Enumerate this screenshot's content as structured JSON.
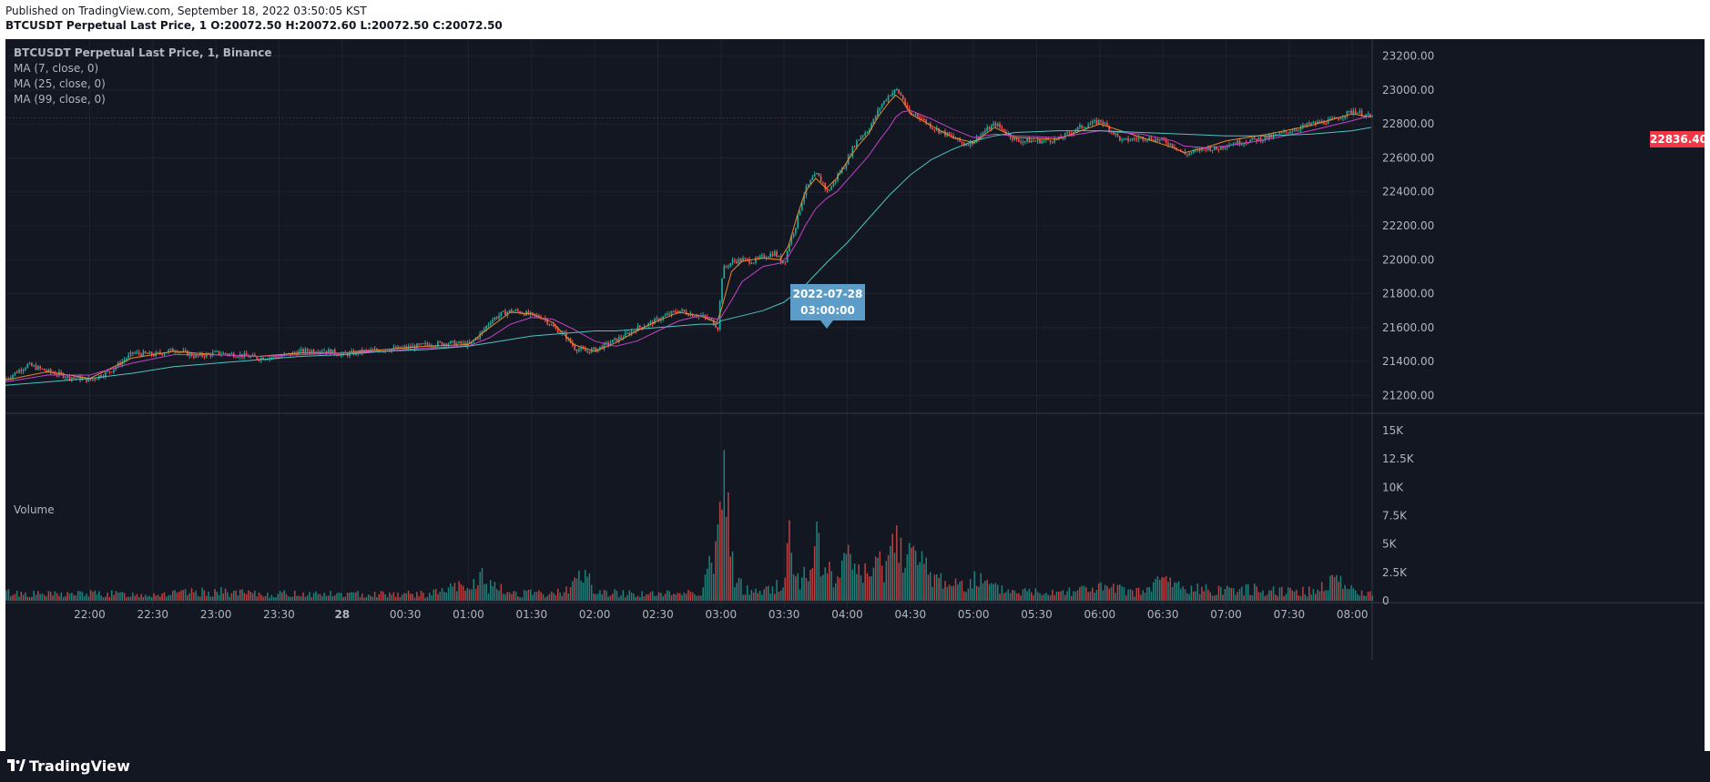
{
  "header": {
    "published": "Published on TradingView.com, September 18, 2022 03:50:05 KST",
    "symbol_line": "BTCUSDT Perpetual Last Price, 1",
    "open_label": "O:",
    "open": "20072.50",
    "high_label": "H:",
    "high": "20072.60",
    "low_label": "L:",
    "low": "20072.50",
    "close_label": "C:",
    "close": "20072.50"
  },
  "legend": {
    "title": "BTCUSDT Perpetual Last Price, 1, Binance",
    "ma1": "MA (7, close, 0)",
    "ma2": "MA (25, close, 0)",
    "ma3": "MA (99, close, 0)",
    "volume": "Volume"
  },
  "tooltip": {
    "date": "2022-07-28",
    "time": "03:00:00"
  },
  "last_price": "22836.40",
  "brand": "TradingView",
  "colors": {
    "background": "#131722",
    "grid": "#1f232e",
    "axis_text": "#b2b5be",
    "up": "#26a69a",
    "down": "#ef5350",
    "ma7": "#e88a2e",
    "ma25": "#c542c8",
    "ma99": "#4fc3c0",
    "tooltip": "#5b9cc9",
    "price_tag": "#f23645"
  },
  "chart_data": {
    "type": "line",
    "title": "BTCUSDT Perpetual Last Price, 1, Binance",
    "x_ticks": [
      "22:00",
      "22:30",
      "23:00",
      "23:30",
      "28",
      "00:30",
      "01:00",
      "01:30",
      "02:00",
      "02:30",
      "03:00",
      "03:30",
      "04:00",
      "04:30",
      "05:00",
      "05:30",
      "06:00",
      "06:30",
      "07:00",
      "07:30",
      "08:00"
    ],
    "y_ticks": [
      "23200.00",
      "23000.00",
      "22800.00",
      "22600.00",
      "22400.00",
      "22200.00",
      "22000.00",
      "21800.00",
      "21600.00",
      "21400.00",
      "21200.00"
    ],
    "ylim": [
      21100,
      23300
    ],
    "volume_ticks": [
      "15K",
      "12.5K",
      "10K",
      "7.5K",
      "5K",
      "2.5K",
      "0"
    ],
    "volume_ylim": [
      0,
      15800
    ],
    "x_range_minutes": [
      1280,
      1929
    ],
    "x_tick_minutes": [
      1320,
      1350,
      1380,
      1410,
      1440,
      1470,
      1500,
      1530,
      1560,
      1590,
      1620,
      1650,
      1680,
      1710,
      1740,
      1770,
      1800,
      1830,
      1860,
      1890,
      1920
    ],
    "price_series": {
      "minutes": [
        1280,
        1290,
        1300,
        1310,
        1320,
        1330,
        1340,
        1350,
        1360,
        1370,
        1380,
        1390,
        1400,
        1410,
        1420,
        1430,
        1440,
        1450,
        1460,
        1470,
        1480,
        1490,
        1500,
        1505,
        1510,
        1515,
        1520,
        1525,
        1530,
        1535,
        1540,
        1545,
        1550,
        1555,
        1560,
        1565,
        1570,
        1575,
        1580,
        1585,
        1590,
        1595,
        1600,
        1605,
        1610,
        1615,
        1618,
        1619,
        1620,
        1621,
        1622,
        1625,
        1630,
        1635,
        1640,
        1645,
        1647,
        1648,
        1650,
        1652,
        1655,
        1658,
        1660,
        1663,
        1665,
        1668,
        1670,
        1673,
        1675,
        1678,
        1680,
        1683,
        1686,
        1689,
        1692,
        1695,
        1698,
        1700,
        1703,
        1706,
        1708,
        1710,
        1712,
        1715,
        1718,
        1720,
        1725,
        1730,
        1735,
        1740,
        1745,
        1750,
        1755,
        1760,
        1770,
        1780,
        1790,
        1800,
        1810,
        1820,
        1830,
        1835,
        1840,
        1845,
        1850,
        1855,
        1860,
        1870,
        1880,
        1890,
        1895,
        1900,
        1910,
        1920,
        1929
      ],
      "close": [
        21300,
        21380,
        21340,
        21310,
        21290,
        21350,
        21450,
        21440,
        21470,
        21430,
        21450,
        21440,
        21420,
        21430,
        21460,
        21470,
        21440,
        21460,
        21470,
        21480,
        21500,
        21510,
        21500,
        21560,
        21640,
        21680,
        21700,
        21690,
        21670,
        21660,
        21600,
        21560,
        21480,
        21460,
        21470,
        21500,
        21530,
        21560,
        21600,
        21620,
        21650,
        21680,
        21700,
        21680,
        21670,
        21640,
        21600,
        21750,
        21900,
        21950,
        21960,
        21990,
        22000,
        21990,
        22020,
        22040,
        22010,
        21990,
        22000,
        22100,
        22200,
        22350,
        22420,
        22480,
        22500,
        22450,
        22400,
        22450,
        22500,
        22550,
        22600,
        22680,
        22730,
        22760,
        22820,
        22900,
        22950,
        22980,
        23000,
        22950,
        22880,
        22850,
        22860,
        22830,
        22800,
        22780,
        22750,
        22720,
        22680,
        22700,
        22760,
        22800,
        22750,
        22700,
        22700,
        22710,
        22780,
        22820,
        22700,
        22720,
        22700,
        22670,
        22620,
        22640,
        22660,
        22650,
        22680,
        22700,
        22720,
        22760,
        22780,
        22800,
        22820,
        22880,
        22836
      ]
    },
    "ma_series": [
      {
        "name": "MA (7, close, 0)",
        "minutes": [
          1280,
          1300,
          1320,
          1340,
          1360,
          1380,
          1400,
          1420,
          1440,
          1460,
          1480,
          1500,
          1510,
          1520,
          1530,
          1540,
          1550,
          1560,
          1570,
          1580,
          1590,
          1600,
          1610,
          1618,
          1620,
          1625,
          1630,
          1640,
          1648,
          1652,
          1656,
          1660,
          1665,
          1670,
          1675,
          1680,
          1685,
          1690,
          1695,
          1700,
          1703,
          1706,
          1710,
          1720,
          1730,
          1740,
          1750,
          1760,
          1780,
          1800,
          1820,
          1835,
          1840,
          1850,
          1860,
          1880,
          1900,
          1920,
          1929
        ],
        "values": [
          21290,
          21340,
          21300,
          21420,
          21460,
          21440,
          21430,
          21450,
          21450,
          21470,
          21490,
          21500,
          21600,
          21690,
          21680,
          21630,
          21500,
          21460,
          21510,
          21580,
          21640,
          21690,
          21670,
          21630,
          21700,
          21930,
          21990,
          22010,
          22000,
          22080,
          22250,
          22400,
          22480,
          22420,
          22480,
          22580,
          22670,
          22740,
          22850,
          22930,
          22970,
          22940,
          22860,
          22790,
          22720,
          22690,
          22780,
          22720,
          22710,
          22800,
          22720,
          22660,
          22630,
          22660,
          22700,
          22740,
          22790,
          22860,
          22840
        ]
      },
      {
        "name": "MA (25, close, 0)",
        "minutes": [
          1280,
          1300,
          1320,
          1340,
          1360,
          1380,
          1400,
          1420,
          1440,
          1460,
          1480,
          1500,
          1510,
          1520,
          1530,
          1540,
          1550,
          1560,
          1570,
          1580,
          1590,
          1600,
          1610,
          1618,
          1620,
          1625,
          1630,
          1640,
          1648,
          1652,
          1656,
          1660,
          1665,
          1670,
          1675,
          1680,
          1685,
          1690,
          1695,
          1700,
          1703,
          1706,
          1710,
          1720,
          1730,
          1740,
          1750,
          1760,
          1780,
          1800,
          1820,
          1835,
          1840,
          1850,
          1860,
          1880,
          1900,
          1920,
          1929
        ],
        "values": [
          21280,
          21320,
          21320,
          21390,
          21440,
          21440,
          21430,
          21440,
          21450,
          21460,
          21480,
          21490,
          21540,
          21620,
          21660,
          21650,
          21590,
          21520,
          21490,
          21520,
          21580,
          21640,
          21670,
          21650,
          21660,
          21760,
          21870,
          21960,
          21980,
          22020,
          22100,
          22200,
          22300,
          22360,
          22400,
          22470,
          22540,
          22610,
          22700,
          22780,
          22840,
          22870,
          22880,
          22830,
          22770,
          22720,
          22740,
          22730,
          22720,
          22760,
          22740,
          22700,
          22670,
          22660,
          22670,
          22710,
          22760,
          22820,
          22850
        ]
      },
      {
        "name": "MA (99, close, 0)",
        "minutes": [
          1280,
          1300,
          1320,
          1340,
          1360,
          1380,
          1400,
          1420,
          1440,
          1460,
          1480,
          1500,
          1510,
          1520,
          1530,
          1540,
          1550,
          1560,
          1570,
          1580,
          1590,
          1600,
          1610,
          1618,
          1620,
          1630,
          1640,
          1650,
          1660,
          1670,
          1680,
          1690,
          1700,
          1710,
          1720,
          1730,
          1740,
          1750,
          1760,
          1780,
          1800,
          1820,
          1840,
          1860,
          1880,
          1900,
          1920,
          1929
        ],
        "values": [
          21260,
          21280,
          21300,
          21330,
          21370,
          21390,
          21410,
          21430,
          21440,
          21460,
          21470,
          21490,
          21510,
          21530,
          21550,
          21560,
          21570,
          21580,
          21580,
          21590,
          21600,
          21610,
          21620,
          21620,
          21640,
          21670,
          21700,
          21750,
          21850,
          21980,
          22100,
          22240,
          22380,
          22500,
          22590,
          22650,
          22700,
          22730,
          22750,
          22760,
          22760,
          22750,
          22740,
          22730,
          22730,
          22740,
          22760,
          22780
        ]
      }
    ],
    "volume_series": {
      "minutes": [
        1280,
        1300,
        1320,
        1340,
        1360,
        1380,
        1400,
        1420,
        1440,
        1460,
        1480,
        1495,
        1500,
        1505,
        1510,
        1520,
        1540,
        1556,
        1560,
        1580,
        1590,
        1600,
        1610,
        1619,
        1620,
        1621,
        1622,
        1623,
        1625,
        1628,
        1630,
        1640,
        1650,
        1651,
        1652,
        1653,
        1655,
        1658,
        1660,
        1662,
        1665,
        1670,
        1675,
        1680,
        1690,
        1700,
        1708,
        1710,
        1720,
        1730,
        1740,
        1750,
        1760,
        1780,
        1800,
        1820,
        1830,
        1840,
        1860,
        1880,
        1900,
        1915,
        1920,
        1929
      ],
      "values": [
        900,
        700,
        800,
        700,
        800,
        1000,
        700,
        800,
        700,
        800,
        700,
        1500,
        1200,
        2800,
        1500,
        900,
        700,
        2800,
        900,
        800,
        700,
        900,
        1000,
        7300,
        15300,
        11200,
        10200,
        8300,
        3800,
        2100,
        1200,
        1000,
        2000,
        6500,
        7400,
        4000,
        3100,
        2000,
        5300,
        2400,
        5600,
        3200,
        2300,
        4600,
        2400,
        5600,
        7300,
        4700,
        2600,
        1800,
        2400,
        1300,
        1000,
        1100,
        1400,
        900,
        2400,
        1200,
        1300,
        1200,
        1000,
        2800,
        900,
        800
      ]
    }
  }
}
